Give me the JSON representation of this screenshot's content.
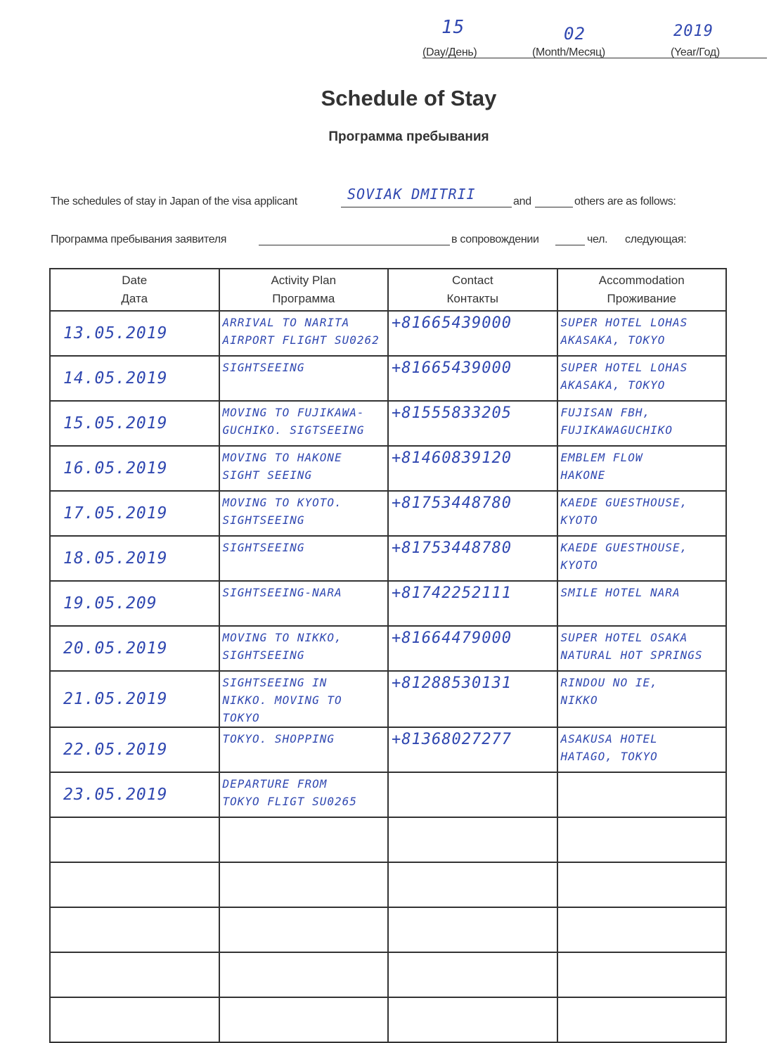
{
  "date_header": {
    "day_value": "15",
    "month_value": "02",
    "year_value": "2019",
    "day_label": "(Day/День)",
    "month_label": "(Month/Месяц)",
    "year_label": "(Year/Год)"
  },
  "title": "Schedule of Stay",
  "subtitle": "Программа пребывания",
  "applicant_line": {
    "prefix": "The schedules of stay in Japan of the visa applicant",
    "applicant_name": "SOVIAK DMITRII",
    "and": "and",
    "suffix": "others are as follows:"
  },
  "applicant_line_ru": {
    "prefix": "Программа пребывания заявителя",
    "middle": "в сопровождении",
    "chel": "чел.",
    "suffix": "следующая:"
  },
  "table": {
    "headers": [
      {
        "en": "Date",
        "ru": "Дата"
      },
      {
        "en": "Activity Plan",
        "ru": "Программа"
      },
      {
        "en": "Contact",
        "ru": "Контакты"
      },
      {
        "en": "Accommodation",
        "ru": "Проживание"
      }
    ],
    "rows": [
      {
        "date": "13.05.2019",
        "activity": "ARRIVAL TO NARITA\nAIRPORT FLIGHT SU0262",
        "contact": "+81665439000",
        "accommodation": "SUPER HOTEL LOHAS\nAKASAKA, TOKYO"
      },
      {
        "date": "14.05.2019",
        "activity": "SIGHTSEEING",
        "contact": "+81665439000",
        "accommodation": "SUPER HOTEL LOHAS\nAKASAKA, TOKYO"
      },
      {
        "date": "15.05.2019",
        "activity": "MOVING TO FUJIKAWA-\nGUCHIKO. SIGTSEEING",
        "contact": "+81555833205",
        "accommodation": "FUJISAN FBH,\nFUJIKAWAGUCHIKO"
      },
      {
        "date": "16.05.2019",
        "activity": "MOVING TO HAKONE\nSIGHT SEEING",
        "contact": "+81460839120",
        "accommodation": "EMBLEM FLOW\nHAKONE"
      },
      {
        "date": "17.05.2019",
        "activity": "MOVING TO KYOTO.\nSIGHTSEEING",
        "contact": "+81753448780",
        "accommodation": "KAEDE GUESTHOUSE,\nKYOTO"
      },
      {
        "date": "18.05.2019",
        "activity": "SIGHTSEEING",
        "contact": "+81753448780",
        "accommodation": "KAEDE GUESTHOUSE,\nKYOTO"
      },
      {
        "date": "19.05.209",
        "activity": "SIGHTSEEING-NARA",
        "contact": "+81742252111",
        "accommodation": "SMILE HOTEL NARA"
      },
      {
        "date": "20.05.2019",
        "activity": "MOVING TO NIKKO,\nSIGHTSEEING",
        "contact": "+81664479000",
        "accommodation": "SUPER HOTEL OSAKA\nNATURAL HOT SPRINGS"
      },
      {
        "date": "21.05.2019",
        "activity": "SIGHTSEEING IN\nNIKKO. MOVING TO TOKYO",
        "contact": "+81288530131",
        "accommodation": "RINDOU NO IE,\nNIKKO"
      },
      {
        "date": "22.05.2019",
        "activity": "TOKYO. SHOPPING",
        "contact": "+81368027277",
        "accommodation": "ASAKUSA HOTEL\nHATAGO, TOKYO"
      },
      {
        "date": "23.05.2019",
        "activity": "DEPARTURE FROM\nTOKYO FLIGT SU0265",
        "contact": "",
        "accommodation": ""
      },
      {
        "date": "",
        "activity": "",
        "contact": "",
        "accommodation": ""
      },
      {
        "date": "",
        "activity": "",
        "contact": "",
        "accommodation": ""
      },
      {
        "date": "",
        "activity": "",
        "contact": "",
        "accommodation": ""
      },
      {
        "date": "",
        "activity": "",
        "contact": "",
        "accommodation": ""
      },
      {
        "date": "",
        "activity": "",
        "contact": "",
        "accommodation": ""
      }
    ]
  },
  "colors": {
    "ink": "#2f47b0",
    "print": "#333333"
  }
}
